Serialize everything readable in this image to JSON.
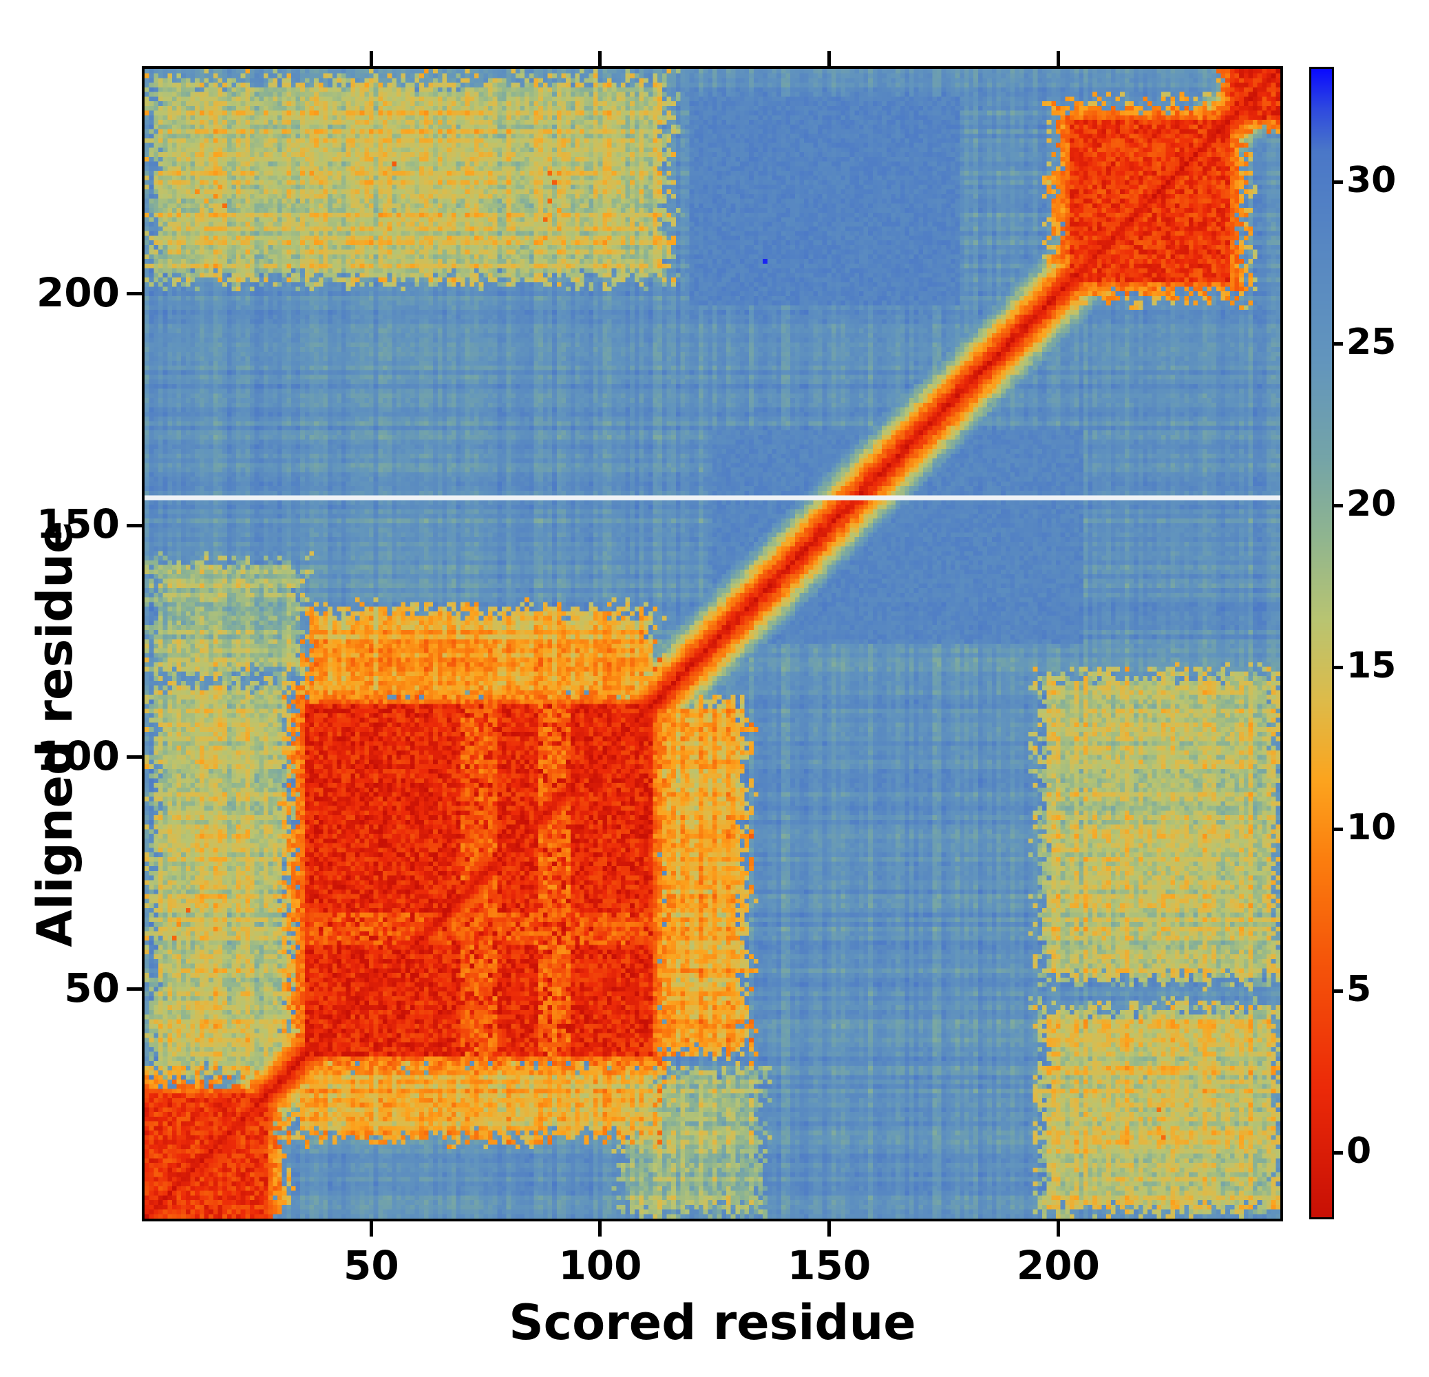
{
  "figure": {
    "background": "#ffffff",
    "frame_color": "#000000"
  },
  "chart_data": {
    "type": "heatmap",
    "title": "",
    "xlabel": "Scored residue",
    "ylabel": "Aligned residue",
    "n_residues": 248,
    "x_ticks": [
      50,
      100,
      150,
      200
    ],
    "y_ticks": [
      50,
      100,
      150,
      200
    ],
    "value_range": [
      -2,
      33.5
    ],
    "background_level": 26.5,
    "colormap_stops": [
      [
        -2.0,
        "#c81005"
      ],
      [
        2.0,
        "#ec2a08"
      ],
      [
        6.0,
        "#f5560a"
      ],
      [
        9.0,
        "#fb7d0e"
      ],
      [
        11.5,
        "#fca41e"
      ],
      [
        14.0,
        "#ddbb4a"
      ],
      [
        16.5,
        "#b8c472"
      ],
      [
        19.0,
        "#90b58f"
      ],
      [
        21.5,
        "#74a4a8"
      ],
      [
        24.5,
        "#6295bd"
      ],
      [
        28.0,
        "#5787c2"
      ],
      [
        31.0,
        "#4a77c8"
      ],
      [
        32.3,
        "#2e49e0"
      ],
      [
        33.5,
        "#0b0bff"
      ]
    ],
    "diagonal": {
      "start_value": -1,
      "slope": 2.3
    },
    "domain_blocks": [
      {
        "start": 1,
        "end": 27,
        "level": 3.0,
        "fuzz": 3
      },
      {
        "start": 36,
        "end": 111,
        "level": 1.5,
        "fuzz": 3
      },
      {
        "start": 203,
        "end": 237,
        "level": 3.0,
        "fuzz": 3
      },
      {
        "start": 238,
        "end": 248,
        "level": 2.5,
        "fuzz": 2
      }
    ],
    "block_streaks": [
      {
        "block": 1,
        "axis": "col",
        "from": 70,
        "to": 77,
        "level": 7.0
      },
      {
        "block": 1,
        "axis": "col",
        "from": 87,
        "to": 93,
        "level": 7.5
      },
      {
        "block": 1,
        "axis": "row",
        "from": 60,
        "to": 66,
        "level": 6.5
      }
    ],
    "green_patches": [
      {
        "x": [
          2,
          115
        ],
        "y": [
          203,
          246
        ],
        "level": 17.0
      },
      {
        "x": [
          2,
          32
        ],
        "y": [
          32,
          116
        ],
        "level": 17.0
      },
      {
        "x": [
          196,
          248
        ],
        "y": [
          2,
          46
        ],
        "level": 16.5
      },
      {
        "x": [
          196,
          248
        ],
        "y": [
          52,
          118
        ],
        "level": 17.0
      },
      {
        "x": [
          36,
          112
        ],
        "y": [
          112,
          132
        ],
        "level": 13.0
      },
      {
        "x": [
          112,
          132
        ],
        "y": [
          36,
          112
        ],
        "level": 13.0
      },
      {
        "x": [
          33,
          112
        ],
        "y": [
          18,
          34
        ],
        "level": 14.0
      },
      {
        "x": [
          105,
          135
        ],
        "y": [
          2,
          32
        ],
        "level": 19.0
      },
      {
        "x": [
          2,
          35
        ],
        "y": [
          118,
          142
        ],
        "level": 19.0
      }
    ],
    "dark_patches": [
      {
        "x": [
          120,
          178
        ],
        "y": [
          198,
          242
        ],
        "level": 28.5
      },
      {
        "x": [
          125,
          205
        ],
        "y": [
          125,
          170
        ],
        "level": 28.0
      }
    ],
    "orange_specks": [
      [
        14,
        220
      ],
      [
        16,
        221
      ],
      [
        12,
        222
      ],
      [
        18,
        219
      ],
      [
        17,
        223
      ],
      [
        88,
        216
      ],
      [
        89,
        220
      ],
      [
        90,
        224
      ],
      [
        88,
        212
      ],
      [
        91,
        218
      ],
      [
        89,
        226
      ],
      [
        55,
        228
      ],
      [
        222,
        20
      ],
      [
        223,
        22
      ],
      [
        222,
        24
      ],
      [
        223,
        18
      ],
      [
        222,
        17
      ],
      [
        8,
        64
      ],
      [
        10,
        67
      ],
      [
        7,
        61
      ]
    ],
    "speck_level": 9,
    "missing_row": 156,
    "missing_row_color": "#eef2f6",
    "outlier_points": [
      {
        "x": 136,
        "y": 207,
        "level": 33
      }
    ]
  },
  "colorbar": {
    "ticks": [
      0,
      5,
      10,
      15,
      20,
      25,
      30
    ]
  }
}
